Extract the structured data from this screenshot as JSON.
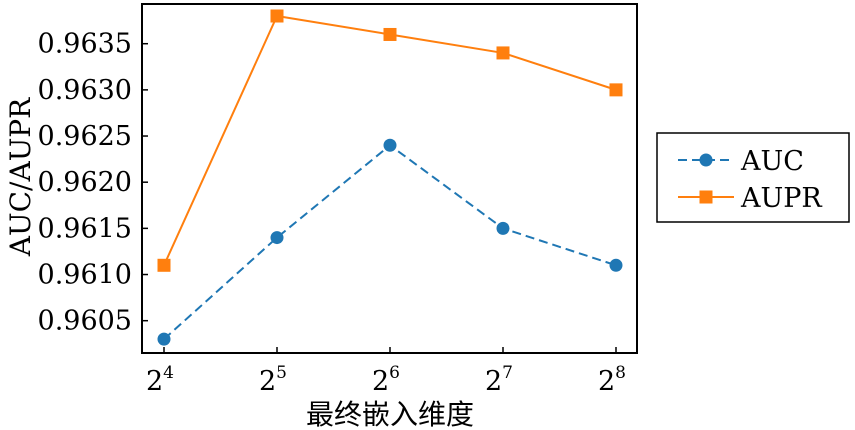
{
  "chart_data": {
    "type": "line",
    "xlabel": "最终嵌入维度",
    "ylabel": "AUC/AUPR",
    "x_ticks": [
      {
        "base": "2",
        "exp": "4"
      },
      {
        "base": "2",
        "exp": "5"
      },
      {
        "base": "2",
        "exp": "6"
      },
      {
        "base": "2",
        "exp": "7"
      },
      {
        "base": "2",
        "exp": "8"
      }
    ],
    "x": [
      16,
      32,
      64,
      128,
      256
    ],
    "x_scale": "log2",
    "ylim": [
      0.96015,
      0.96393
    ],
    "y_ticks": [
      "0.9605",
      "0.9610",
      "0.9615",
      "0.9620",
      "0.9625",
      "0.9630",
      "0.9635"
    ],
    "grid": false,
    "legend_position": "right, outside plot",
    "series": [
      {
        "name": "AUC",
        "values": [
          0.9603,
          0.9614,
          0.9624,
          0.9615,
          0.9611
        ],
        "color": "#1f77b4",
        "marker": "circle",
        "line_style": "dashed"
      },
      {
        "name": "AUPR",
        "values": [
          0.9611,
          0.9638,
          0.9636,
          0.9634,
          0.963
        ],
        "color": "#ff7f0e",
        "marker": "square",
        "line_style": "solid"
      }
    ]
  }
}
